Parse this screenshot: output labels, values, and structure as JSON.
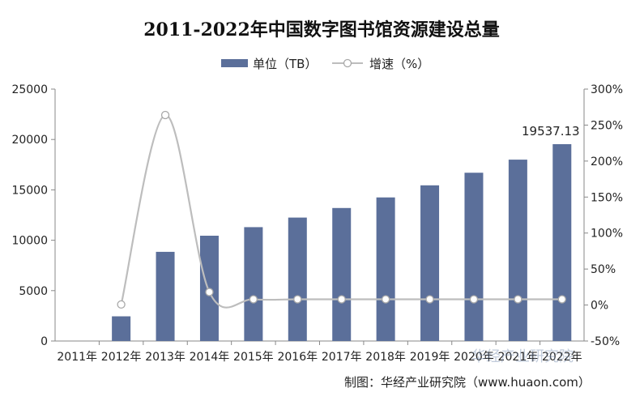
{
  "chart_data": {
    "type": "bar",
    "title": "2011-2022年中国数字图书馆资源建设总量",
    "categories": [
      "2011年",
      "2012年",
      "2013年",
      "2014年",
      "2015年",
      "2016年",
      "2017年",
      "2018年",
      "2019年",
      "2020年",
      "2021年",
      "2022年"
    ],
    "series": [
      {
        "name": "单位（TB）",
        "type": "bar",
        "axis": "left",
        "color": "#5b6f9a",
        "values": [
          0,
          2450,
          8850,
          10450,
          11300,
          12250,
          13200,
          14250,
          15450,
          16700,
          18000,
          19537.13
        ]
      },
      {
        "name": "增速（%）",
        "type": "line",
        "axis": "right",
        "color": "#bdbdbd",
        "values": [
          null,
          0.8,
          264,
          18,
          8,
          8,
          8,
          8,
          8,
          8,
          8,
          8
        ]
      }
    ],
    "y_left": {
      "min": 0,
      "max": 25000,
      "ticks": [
        "0",
        "5000",
        "10000",
        "15000",
        "20000",
        "25000"
      ]
    },
    "y_right": {
      "min": -50,
      "max": 300,
      "ticks": [
        "-50%",
        "0%",
        "50%",
        "100%",
        "150%",
        "200%",
        "250%",
        "300%"
      ]
    },
    "annotation": "19537.13",
    "legend_position": "top-center",
    "grid": false
  },
  "credit": "制图：华经产业研究院（www.huaon.com）",
  "watermark": "华经产业研究院"
}
